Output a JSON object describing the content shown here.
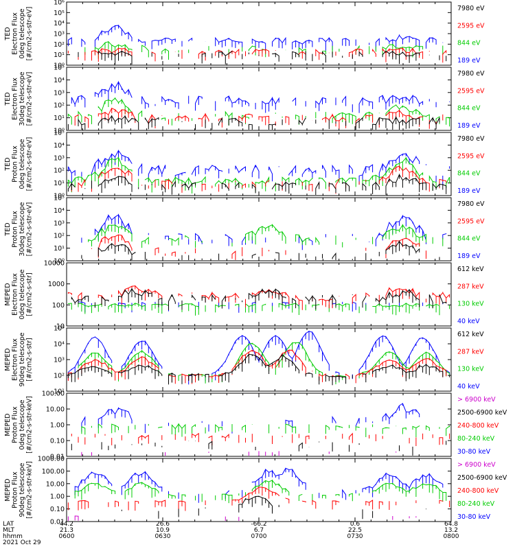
{
  "chart_data": [
    {
      "type": "line",
      "ylabel": "TED\nElectron Flux\n0deg telescope\n[#/cm2-s-str-eV]",
      "yscale": "log",
      "ylim": [
        1,
        1000000
      ],
      "yticks": [
        "10⁰",
        "10¹",
        "10²",
        "10³",
        "10⁴",
        "10⁵",
        "10⁶"
      ],
      "series": [
        {
          "name": "7980 eV",
          "color": "#000000",
          "level": 1.1,
          "spread": 0.25,
          "density": 0.45,
          "bumps": [
            [
              14,
              1.0
            ],
            [
              100,
              0.8
            ]
          ]
        },
        {
          "name": "2595 eV",
          "color": "#ff0000",
          "level": 1.3,
          "spread": 0.25,
          "density": 0.5,
          "bumps": [
            [
              14,
              1.4
            ],
            [
              100,
              1.4
            ]
          ]
        },
        {
          "name": "844 eV",
          "color": "#00cc00",
          "level": 1.6,
          "spread": 0.3,
          "density": 0.45,
          "bumps": [
            [
              14,
              2.0
            ],
            [
              100,
              1.8
            ]
          ]
        },
        {
          "name": "189 eV",
          "color": "#0000ff",
          "level": 2.3,
          "spread": 0.3,
          "density": 0.7,
          "bumps": [
            [
              14,
              3.6
            ],
            [
              100,
              2.6
            ]
          ]
        }
      ]
    },
    {
      "type": "line",
      "ylabel": "TED\nElectron Flux\n30deg telescope\n[#/cm2-s-str-eV]",
      "yscale": "log",
      "ylim": [
        1,
        100000
      ],
      "yticks": [
        "10⁰",
        "10¹",
        "10²",
        "10³",
        "10⁴",
        "10⁵"
      ],
      "series": [
        {
          "name": "7980 eV",
          "color": "#000000",
          "level": 0.7,
          "spread": 0.3,
          "density": 0.6,
          "bumps": [
            [
              14,
              1.0
            ],
            [
              100,
              0.8
            ]
          ]
        },
        {
          "name": "2595 eV",
          "color": "#ff0000",
          "level": 1.0,
          "spread": 0.3,
          "density": 0.6,
          "bumps": [
            [
              14,
              1.6
            ],
            [
              100,
              1.3
            ]
          ]
        },
        {
          "name": "844 eV",
          "color": "#00cc00",
          "level": 1.2,
          "spread": 0.3,
          "density": 0.4,
          "bumps": [
            [
              14,
              2.4
            ],
            [
              100,
              1.8
            ]
          ]
        },
        {
          "name": "189 eV",
          "color": "#0000ff",
          "level": 2.4,
          "spread": 0.35,
          "density": 0.7,
          "bumps": [
            [
              14,
              3.6
            ],
            [
              100,
              2.5
            ]
          ]
        }
      ]
    },
    {
      "type": "line",
      "ylabel": "TED\nProton Flux\n0deg telescope\n[#/cm2-s-str-eV]",
      "yscale": "log",
      "ylim": [
        1,
        100000
      ],
      "yticks": [
        "10⁰",
        "10¹",
        "10²",
        "10³",
        "10⁴",
        "10⁵"
      ],
      "series": [
        {
          "name": "7980 eV",
          "color": "#000000",
          "level": 0.8,
          "spread": 0.3,
          "density": 0.6,
          "bumps": [
            [
              14,
              1.5
            ],
            [
              100,
              1.4
            ]
          ]
        },
        {
          "name": "2595 eV",
          "color": "#ff0000",
          "level": 1.0,
          "spread": 0.3,
          "density": 0.4,
          "bumps": [
            [
              14,
              2.3
            ],
            [
              100,
              2.1
            ]
          ]
        },
        {
          "name": "844 eV",
          "color": "#00cc00",
          "level": 1.2,
          "spread": 0.3,
          "density": 0.8,
          "bumps": [
            [
              14,
              2.8
            ],
            [
              100,
              2.8
            ]
          ]
        },
        {
          "name": "189 eV",
          "color": "#0000ff",
          "level": 2.0,
          "spread": 0.45,
          "density": 0.7,
          "bumps": [
            [
              14,
              3.2
            ],
            [
              100,
              3.3
            ]
          ]
        }
      ]
    },
    {
      "type": "line",
      "ylabel": "TED\nProton Flux\n30deg telescope\n[#/cm2-s-str-eV]",
      "yscale": "log",
      "ylim": [
        1,
        100000
      ],
      "yticks": [
        "10⁰",
        "10¹",
        "10²",
        "10³",
        "10⁴",
        "10⁵"
      ],
      "series": [
        {
          "name": "7980 eV",
          "color": "#000000",
          "level": 0.4,
          "spread": 0.3,
          "density": 0.2,
          "bumps": [
            [
              14,
              1.3
            ],
            [
              100,
              1.4
            ]
          ]
        },
        {
          "name": "2595 eV",
          "color": "#ff0000",
          "level": 0.8,
          "spread": 0.3,
          "density": 0.2,
          "bumps": [
            [
              14,
              2.0
            ],
            [
              100,
              1.8
            ]
          ]
        },
        {
          "name": "844 eV",
          "color": "#00cc00",
          "level": 1.7,
          "spread": 0.3,
          "density": 0.4,
          "bumps": [
            [
              14,
              2.8
            ],
            [
              60,
              2.9
            ],
            [
              100,
              2.6
            ]
          ]
        },
        {
          "name": "189 eV",
          "color": "#0000ff",
          "level": 1.8,
          "spread": 0.4,
          "density": 0.35,
          "bumps": [
            [
              14,
              3.5
            ],
            [
              100,
              3.4
            ]
          ]
        }
      ]
    },
    {
      "type": "line",
      "ylabel": "MEPED\nElectron Flux\n0deg telescope\n[#/cm2-s-str]",
      "yscale": "log",
      "ylim": [
        10,
        10000
      ],
      "yticks": [
        "10",
        "100",
        "1000",
        "10000"
      ],
      "series": [
        {
          "name": "612 keV",
          "color": "#000000",
          "level": 2.3,
          "spread": 0.2,
          "density": 0.6,
          "bumps": [
            [
              20,
              2.6
            ],
            [
              60,
              2.6
            ],
            [
              100,
              2.6
            ]
          ]
        },
        {
          "name": "287 keV",
          "color": "#ff0000",
          "level": 2.4,
          "spread": 0.2,
          "density": 0.6,
          "bumps": [
            [
              20,
              2.8
            ],
            [
              60,
              2.8
            ],
            [
              100,
              2.8
            ]
          ]
        },
        {
          "name": "130 keV",
          "color": "#00cc00",
          "level": 2.0,
          "spread": 0.08,
          "density": 0.8,
          "bumps": []
        },
        {
          "name": "40 keV",
          "color": "#0000ff",
          "level": 2.1,
          "spread": 0.05,
          "density": 0.3,
          "bumps": []
        }
      ]
    },
    {
      "type": "line",
      "ylabel": "MEPED\nElectron Flux\n90deg telescope\n[#/cm2-s-str]",
      "yscale": "log",
      "ylim": [
        10,
        100000
      ],
      "yticks": [
        "10¹",
        "10²",
        "10³",
        "10⁴",
        "10⁵"
      ],
      "series": [
        {
          "name": "612 keV",
          "color": "#000000",
          "level": 2.0,
          "spread": 0.12,
          "density": 0.6,
          "bumps": [
            [
              8,
              2.6
            ],
            [
              22,
              2.6
            ],
            [
              55,
              3.3
            ],
            [
              64,
              3.2
            ],
            [
              96,
              2.6
            ],
            [
              107,
              2.6
            ]
          ]
        },
        {
          "name": "287 keV",
          "color": "#ff0000",
          "level": 2.0,
          "spread": 0.1,
          "density": 0.7,
          "bumps": [
            [
              8,
              3.0
            ],
            [
              22,
              3.1
            ],
            [
              55,
              3.6
            ],
            [
              66,
              3.6
            ],
            [
              96,
              3.0
            ],
            [
              107,
              3.0
            ]
          ]
        },
        {
          "name": "130 keV",
          "color": "#00cc00",
          "level": 2.0,
          "spread": 0.08,
          "density": 0.5,
          "bumps": [
            [
              8,
              3.4
            ],
            [
              22,
              3.5
            ],
            [
              55,
              4.0
            ],
            [
              68,
              4.1
            ],
            [
              96,
              3.5
            ],
            [
              107,
              3.4
            ]
          ]
        },
        {
          "name": "40 keV",
          "color": "#0000ff",
          "level": 2.0,
          "spread": 0.05,
          "density": 0.5,
          "bumps": [
            [
              8,
              4.4
            ],
            [
              22,
              4.2
            ],
            [
              52,
              4.5
            ],
            [
              62,
              4.5
            ],
            [
              72,
              4.8
            ],
            [
              94,
              4.5
            ],
            [
              106,
              4.4
            ]
          ]
        }
      ]
    },
    {
      "type": "line",
      "ylabel": "MEPED\nProton Flux\n0deg telescope\n[#/cm2-s-str-keV]",
      "yscale": "log",
      "ylim": [
        0.01,
        100
      ],
      "yticks": [
        "0.01",
        "0.10",
        "1.00",
        "10.00",
        "100.00"
      ],
      "series": [
        {
          "name": "> 6900 keV",
          "color": "#cc00cc",
          "level": -1.7,
          "spread": 0.05,
          "density": 0.08,
          "bumps": []
        },
        {
          "name": "2500-6900 keV",
          "color": "#000000",
          "level": -1.2,
          "spread": 0.2,
          "density": 0.15,
          "bumps": []
        },
        {
          "name": "240-800 keV",
          "color": "#ff0000",
          "level": -0.7,
          "spread": 0.15,
          "density": 0.35,
          "bumps": []
        },
        {
          "name": "80-240 keV",
          "color": "#00cc00",
          "level": -0.1,
          "spread": 0.15,
          "density": 0.55,
          "bumps": []
        },
        {
          "name": "30-80 keV",
          "color": "#0000ff",
          "level": 0.2,
          "spread": 0.3,
          "density": 0.3,
          "bumps": [
            [
              14,
              0.9
            ],
            [
              100,
              1.1
            ]
          ]
        }
      ]
    },
    {
      "type": "line",
      "ylabel": "MEPED\nProton Flux\n90deg telescope\n[#/cm2-s-str-keV]",
      "yscale": "log",
      "ylim": [
        0.01,
        1000
      ],
      "yticks": [
        "0.01",
        "0.10",
        "1.00",
        "10.00",
        "100.00",
        "1000.00"
      ],
      "series": [
        {
          "name": "> 6900 keV",
          "color": "#cc00cc",
          "level": -1.6,
          "spread": 0.05,
          "density": 0.08,
          "bumps": []
        },
        {
          "name": "2500-6900 keV",
          "color": "#000000",
          "level": -1.0,
          "spread": 0.2,
          "density": 0.15,
          "bumps": [
            [
              56,
              0.0
            ]
          ]
        },
        {
          "name": "240-800 keV",
          "color": "#ff0000",
          "level": -0.4,
          "spread": 0.1,
          "density": 0.4,
          "bumps": [
            [
              58,
              0.7
            ]
          ]
        },
        {
          "name": "80-240 keV",
          "color": "#00cc00",
          "level": 0.1,
          "spread": 0.12,
          "density": 0.5,
          "bumps": [
            [
              8,
              1.0
            ],
            [
              22,
              1.0
            ],
            [
              60,
              1.2
            ],
            [
              96,
              1.0
            ],
            [
              107,
              1.0
            ]
          ]
        },
        {
          "name": "30-80 keV",
          "color": "#0000ff",
          "level": 0.3,
          "spread": 0.2,
          "density": 0.3,
          "bumps": [
            [
              8,
              1.9
            ],
            [
              22,
              1.9
            ],
            [
              60,
              2.0
            ],
            [
              66,
              2.1
            ],
            [
              96,
              1.8
            ],
            [
              107,
              1.7
            ]
          ]
        }
      ]
    }
  ],
  "x_axis": {
    "rows": [
      {
        "label": "LAT",
        "values": [
          "44.2",
          "26.6",
          "-66.2",
          "0.6",
          "64.8"
        ]
      },
      {
        "label": "MLT",
        "values": [
          "21.3",
          "10.9",
          "6.7",
          "22.5",
          "13.2"
        ]
      },
      {
        "label": "hhmm",
        "values": [
          "0600",
          "0630",
          "0700",
          "0730",
          "0800"
        ]
      }
    ],
    "date": "2021 Oct 29"
  }
}
